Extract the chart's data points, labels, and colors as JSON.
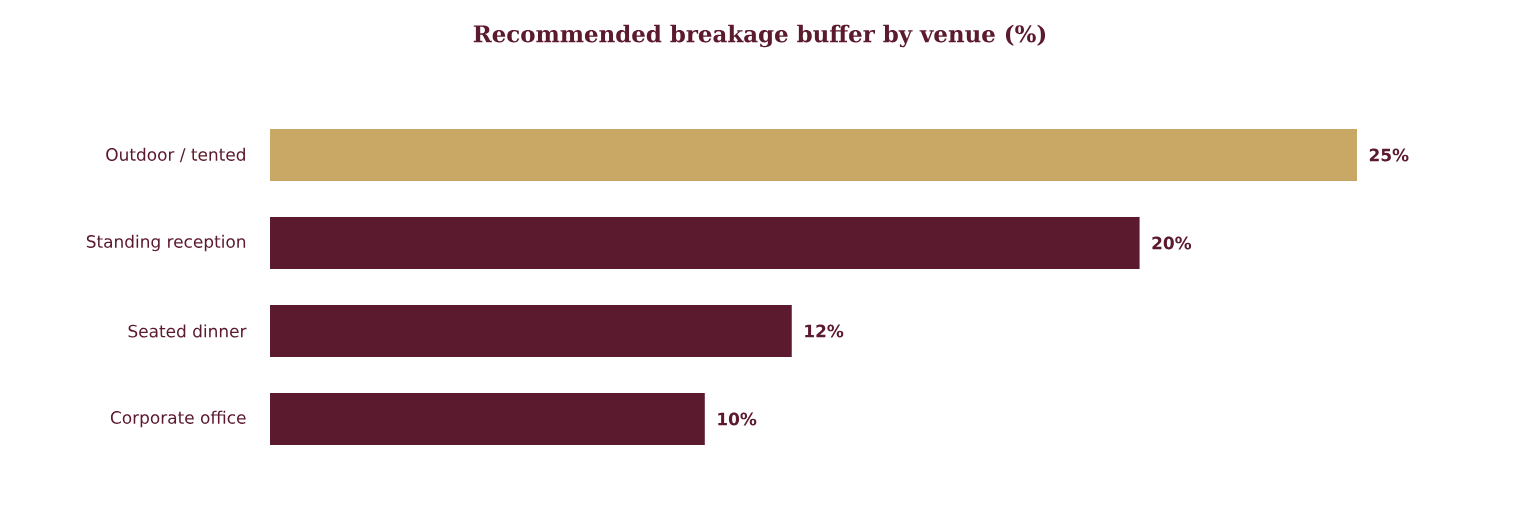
{
  "chart_data": {
    "type": "bar",
    "orientation": "horizontal",
    "title": "Recommended breakage buffer by venue (%)",
    "categories": [
      "Outdoor / tented",
      "Standing reception",
      "Seated dinner",
      "Corporate office"
    ],
    "values": [
      25,
      20,
      12,
      10
    ],
    "colors": [
      "#c8a864",
      "#5c1a2e",
      "#5c1a2e",
      "#5c1a2e"
    ],
    "value_labels": [
      "25%",
      "20%",
      "12%",
      "10%"
    ]
  }
}
